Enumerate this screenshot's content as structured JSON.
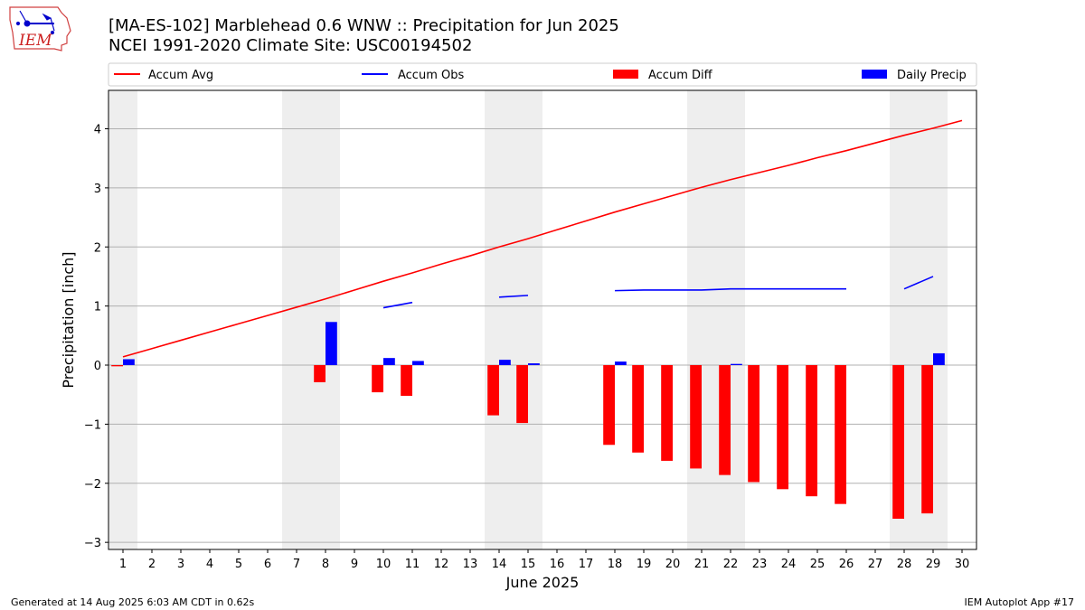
{
  "header": {
    "title_line1": "[MA-ES-102] Marblehead 0.6 WNW :: Precipitation for Jun 2025",
    "title_line2": "NCEI 1991-2020 Climate Site: USC00194502"
  },
  "logo": {
    "text": "IEM",
    "name": "iem-logo"
  },
  "footer": {
    "left": "Generated at 14 Aug 2025 6:03 AM CDT in 0.62s",
    "right": "IEM Autoplot App #17"
  },
  "colors": {
    "accum_avg": "#ff0000",
    "accum_obs": "#0000ff",
    "accum_diff": "#ff0000",
    "daily_precip": "#0000ff",
    "weekend_band": "#eeeeee",
    "grid": "#b0b0b0"
  },
  "chart_data": {
    "type": "bar",
    "title": "[MA-ES-102] Marblehead 0.6 WNW :: Precipitation for Jun 2025",
    "subtitle": "NCEI 1991-2020 Climate Site: USC00194502",
    "xlabel": "June 2025",
    "ylabel": "Precipitation [inch]",
    "xlim": [
      0.5,
      30.5
    ],
    "ylim": [
      -3.12,
      4.65
    ],
    "yticks": [
      -3,
      -2,
      -1,
      0,
      1,
      2,
      3,
      4
    ],
    "ytick_labels": [
      "−3",
      "−2",
      "−1",
      "0",
      "1",
      "2",
      "3",
      "4"
    ],
    "days": [
      1,
      2,
      3,
      4,
      5,
      6,
      7,
      8,
      9,
      10,
      11,
      12,
      13,
      14,
      15,
      16,
      17,
      18,
      19,
      20,
      21,
      22,
      23,
      24,
      25,
      26,
      27,
      28,
      29,
      30
    ],
    "grid": "horizontal",
    "legend_position": "top",
    "legend": [
      "Accum Avg",
      "Accum Obs",
      "Accum Diff",
      "Daily Precip"
    ],
    "weekend_bands": [
      [
        0.5,
        1.5
      ],
      [
        6.5,
        8.5
      ],
      [
        13.5,
        15.5
      ],
      [
        20.5,
        22.5
      ],
      [
        27.5,
        29.5
      ]
    ],
    "series": [
      {
        "name": "Accum Avg",
        "kind": "line",
        "values": [
          0.14,
          0.28,
          0.42,
          0.56,
          0.7,
          0.84,
          0.98,
          1.12,
          1.27,
          1.42,
          1.56,
          1.71,
          1.85,
          2.0,
          2.14,
          2.29,
          2.44,
          2.59,
          2.73,
          2.87,
          3.01,
          3.14,
          3.26,
          3.38,
          3.51,
          3.63,
          3.76,
          3.89,
          4.01,
          4.14
        ]
      },
      {
        "name": "Accum Obs",
        "kind": "line",
        "values": [
          null,
          null,
          null,
          null,
          null,
          null,
          null,
          null,
          null,
          0.97,
          1.06,
          null,
          null,
          1.15,
          1.18,
          null,
          null,
          1.26,
          1.27,
          1.27,
          1.27,
          1.29,
          1.29,
          1.29,
          1.29,
          1.29,
          null,
          1.29,
          1.5,
          null
        ]
      },
      {
        "name": "Accum Diff",
        "kind": "bar",
        "values": [
          -0.02,
          null,
          null,
          null,
          null,
          null,
          null,
          -0.29,
          null,
          -0.46,
          -0.52,
          null,
          null,
          -0.85,
          -0.98,
          null,
          null,
          -1.35,
          -1.48,
          -1.62,
          -1.75,
          -1.86,
          -1.98,
          -2.1,
          -2.22,
          -2.35,
          null,
          -2.6,
          -2.51,
          null
        ]
      },
      {
        "name": "Daily Precip",
        "kind": "bar",
        "values": [
          0.1,
          null,
          null,
          null,
          null,
          null,
          null,
          0.73,
          null,
          0.12,
          0.07,
          null,
          null,
          0.09,
          0.03,
          null,
          null,
          0.06,
          null,
          null,
          null,
          0.02,
          null,
          null,
          null,
          null,
          null,
          null,
          0.2,
          null
        ]
      }
    ]
  }
}
